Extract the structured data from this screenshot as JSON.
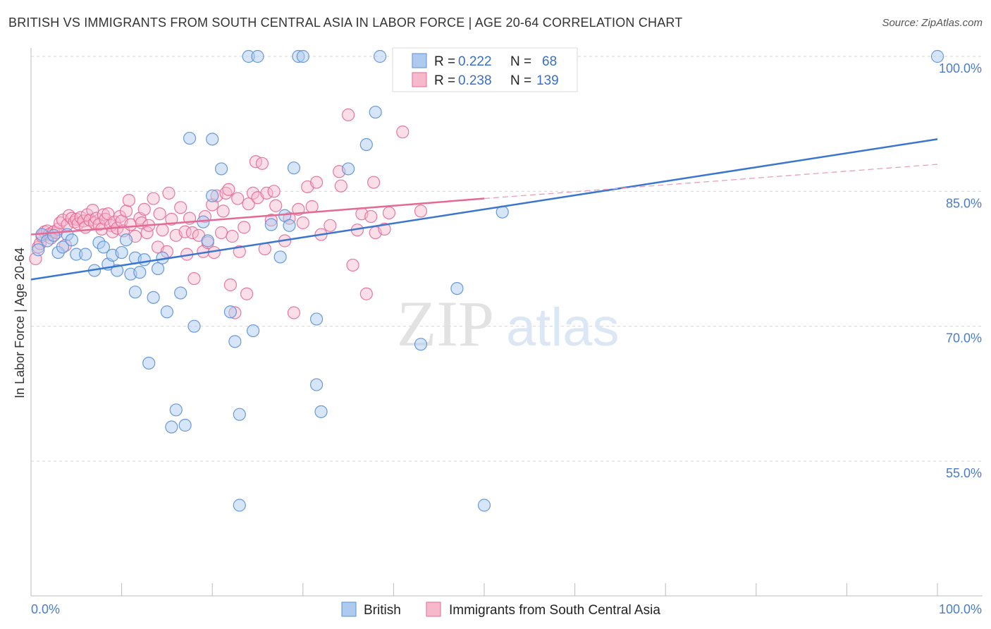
{
  "title": "BRITISH VS IMMIGRANTS FROM SOUTH CENTRAL ASIA IN LABOR FORCE | AGE 20-64 CORRELATION CHART",
  "source": "Source: ZipAtlas.com",
  "watermark": {
    "zip": "ZIP",
    "atlas": "atlas"
  },
  "colors": {
    "blue": "#5b8fd6",
    "blue_fill": "#aecbef",
    "pink": "#e46a95",
    "pink_fill": "#f6b8cb",
    "tick": "#4a7cc9"
  },
  "legend": {
    "rows": [
      {
        "r_label": "R =",
        "r_value": "0.222",
        "n_label": "N =",
        "n_value": "68"
      },
      {
        "r_label": "R =",
        "r_value": "0.238",
        "n_label": "N =",
        "n_value": "139"
      }
    ]
  },
  "chart_data": {
    "type": "scatter",
    "ylabel": "In Labor Force | Age 20-64",
    "xlim": [
      0,
      100
    ],
    "ylim": [
      40,
      102
    ],
    "x_tick_labels": [
      "0.0%",
      "100.0%"
    ],
    "y_ticks": [
      55,
      70,
      85,
      100
    ],
    "y_tick_labels": [
      "55.0%",
      "70.0%",
      "85.0%",
      "100.0%"
    ],
    "series": [
      {
        "name": "British",
        "trend": {
          "x": [
            0,
            100
          ],
          "y": [
            75.2,
            90.8
          ]
        },
        "points": [
          [
            0.8,
            78.5
          ],
          [
            1.2,
            80.2
          ],
          [
            1.8,
            79.5
          ],
          [
            2.5,
            80.1
          ],
          [
            3,
            78.2
          ],
          [
            3.5,
            78.8
          ],
          [
            4,
            80.2
          ],
          [
            4.5,
            79.6
          ],
          [
            5,
            78
          ],
          [
            6,
            78
          ],
          [
            7,
            76.2
          ],
          [
            7.5,
            79.3
          ],
          [
            8,
            78.8
          ],
          [
            8.5,
            76.9
          ],
          [
            9,
            77.9
          ],
          [
            9.5,
            76.2
          ],
          [
            10,
            78.2
          ],
          [
            10.5,
            79.6
          ],
          [
            11,
            75.8
          ],
          [
            11.5,
            77.6
          ],
          [
            11.5,
            73.8
          ],
          [
            12,
            76
          ],
          [
            12.5,
            77.4
          ],
          [
            13,
            65.9
          ],
          [
            13.5,
            73.2
          ],
          [
            14,
            76.4
          ],
          [
            14.5,
            77.6
          ],
          [
            15,
            71.6
          ],
          [
            15.5,
            58.8
          ],
          [
            16,
            60.7
          ],
          [
            16.5,
            73.7
          ],
          [
            17,
            59
          ],
          [
            17.5,
            90.9
          ],
          [
            18,
            70
          ],
          [
            19,
            81.6
          ],
          [
            19.5,
            79.5
          ],
          [
            20,
            84.5
          ],
          [
            20,
            90.8
          ],
          [
            21,
            87.5
          ],
          [
            22,
            71.6
          ],
          [
            22.5,
            68.3
          ],
          [
            23,
            50.1
          ],
          [
            23,
            60.2
          ],
          [
            24,
            100
          ],
          [
            24.5,
            69.5
          ],
          [
            25,
            100
          ],
          [
            26.5,
            81.3
          ],
          [
            27.5,
            77.7
          ],
          [
            28,
            82.3
          ],
          [
            28.5,
            81.2
          ],
          [
            29,
            87.6
          ],
          [
            29.5,
            100
          ],
          [
            30,
            100
          ],
          [
            31.5,
            63.5
          ],
          [
            31.5,
            70.8
          ],
          [
            32,
            60.5
          ],
          [
            35,
            87.5
          ],
          [
            37,
            90.2
          ],
          [
            38,
            93.8
          ],
          [
            38.5,
            100
          ],
          [
            43,
            68
          ],
          [
            47,
            74.2
          ],
          [
            50,
            50.1
          ],
          [
            52,
            82.7
          ],
          [
            100,
            100
          ]
        ]
      },
      {
        "name": "Immigrants from South Central Asia",
        "trend": {
          "x": [
            0,
            50
          ],
          "y": [
            80.2,
            84.2
          ]
        },
        "trend_dashed": {
          "x": [
            50,
            100
          ],
          "y": [
            84.2,
            88.0
          ]
        },
        "points": [
          [
            0.5,
            77.5
          ],
          [
            0.8,
            78.8
          ],
          [
            1,
            79.2
          ],
          [
            1.2,
            80.0
          ],
          [
            1.5,
            80.5
          ],
          [
            1.8,
            80.6
          ],
          [
            2,
            80.2
          ],
          [
            2.2,
            79.8
          ],
          [
            2.5,
            80.5
          ],
          [
            2.8,
            80.4
          ],
          [
            3,
            80.8
          ],
          [
            3.2,
            81.5
          ],
          [
            3.5,
            81.8
          ],
          [
            3.8,
            79.0
          ],
          [
            4,
            81.3
          ],
          [
            4.2,
            82.3
          ],
          [
            4.5,
            82.0
          ],
          [
            4.8,
            81.6
          ],
          [
            5,
            81.9
          ],
          [
            5.2,
            81.4
          ],
          [
            5.5,
            82.1
          ],
          [
            5.8,
            81.7
          ],
          [
            6,
            81.0
          ],
          [
            6.2,
            82.4
          ],
          [
            6.5,
            81.8
          ],
          [
            6.8,
            82.9
          ],
          [
            7,
            81.5
          ],
          [
            7.2,
            82.0
          ],
          [
            7.5,
            81.3
          ],
          [
            7.8,
            80.8
          ],
          [
            8,
            82.4
          ],
          [
            8.2,
            81.9
          ],
          [
            8.5,
            82.5
          ],
          [
            8.8,
            81.2
          ],
          [
            9,
            80.5
          ],
          [
            9.2,
            81.6
          ],
          [
            9.5,
            80.9
          ],
          [
            9.8,
            82.2
          ],
          [
            10,
            81.7
          ],
          [
            10.2,
            80.6
          ],
          [
            10.5,
            82.8
          ],
          [
            10.8,
            84.0
          ],
          [
            11,
            81.3
          ],
          [
            11.5,
            80.0
          ],
          [
            12,
            82.0
          ],
          [
            12.2,
            81.5
          ],
          [
            12.5,
            83.0
          ],
          [
            12.8,
            80.4
          ],
          [
            13,
            81.2
          ],
          [
            13.5,
            84.2
          ],
          [
            14,
            78.8
          ],
          [
            14.2,
            82.5
          ],
          [
            14.5,
            80.7
          ],
          [
            15,
            78.3
          ],
          [
            15.2,
            84.8
          ],
          [
            15.5,
            81.9
          ],
          [
            16,
            80.1
          ],
          [
            16.5,
            83.2
          ],
          [
            17,
            80.5
          ],
          [
            17.2,
            78.0
          ],
          [
            17.5,
            82.0
          ],
          [
            17.8,
            80.4
          ],
          [
            18,
            75.3
          ],
          [
            18.5,
            80.1
          ],
          [
            19,
            78.3
          ],
          [
            19.2,
            82.2
          ],
          [
            19.5,
            79.3
          ],
          [
            20,
            83.5
          ],
          [
            20.2,
            78.2
          ],
          [
            20.5,
            84.5
          ],
          [
            21,
            80.4
          ],
          [
            21.2,
            82.8
          ],
          [
            21.5,
            84.8
          ],
          [
            21.8,
            85.2
          ],
          [
            22,
            74.6
          ],
          [
            22.2,
            80.0
          ],
          [
            22.5,
            71.5
          ],
          [
            22.8,
            84.2
          ],
          [
            23,
            78.3
          ],
          [
            23.5,
            81.0
          ],
          [
            23.8,
            73.6
          ],
          [
            24,
            83.6
          ],
          [
            24.5,
            84.8
          ],
          [
            24.8,
            88.3
          ],
          [
            25,
            84.3
          ],
          [
            25.5,
            88.1
          ],
          [
            25.8,
            78.6
          ],
          [
            26,
            84.8
          ],
          [
            26.5,
            81.8
          ],
          [
            26.8,
            85.0
          ],
          [
            27,
            83.4
          ],
          [
            28,
            79.5
          ],
          [
            28.5,
            82.0
          ],
          [
            29,
            71.5
          ],
          [
            29.5,
            83.0
          ],
          [
            30,
            81.5
          ],
          [
            30.5,
            85.5
          ],
          [
            31,
            83.3
          ],
          [
            31.5,
            86.0
          ],
          [
            32,
            80.2
          ],
          [
            33,
            81.2
          ],
          [
            34,
            87.2
          ],
          [
            34.2,
            85.6
          ],
          [
            35,
            93.5
          ],
          [
            35.5,
            76.8
          ],
          [
            36,
            80.7
          ],
          [
            36.5,
            82.5
          ],
          [
            37,
            73.6
          ],
          [
            37.5,
            82.2
          ],
          [
            37.8,
            86.0
          ],
          [
            38,
            80.4
          ],
          [
            39,
            80.8
          ],
          [
            39.5,
            82.6
          ],
          [
            41,
            91.6
          ],
          [
            43,
            82.8
          ]
        ]
      }
    ]
  }
}
